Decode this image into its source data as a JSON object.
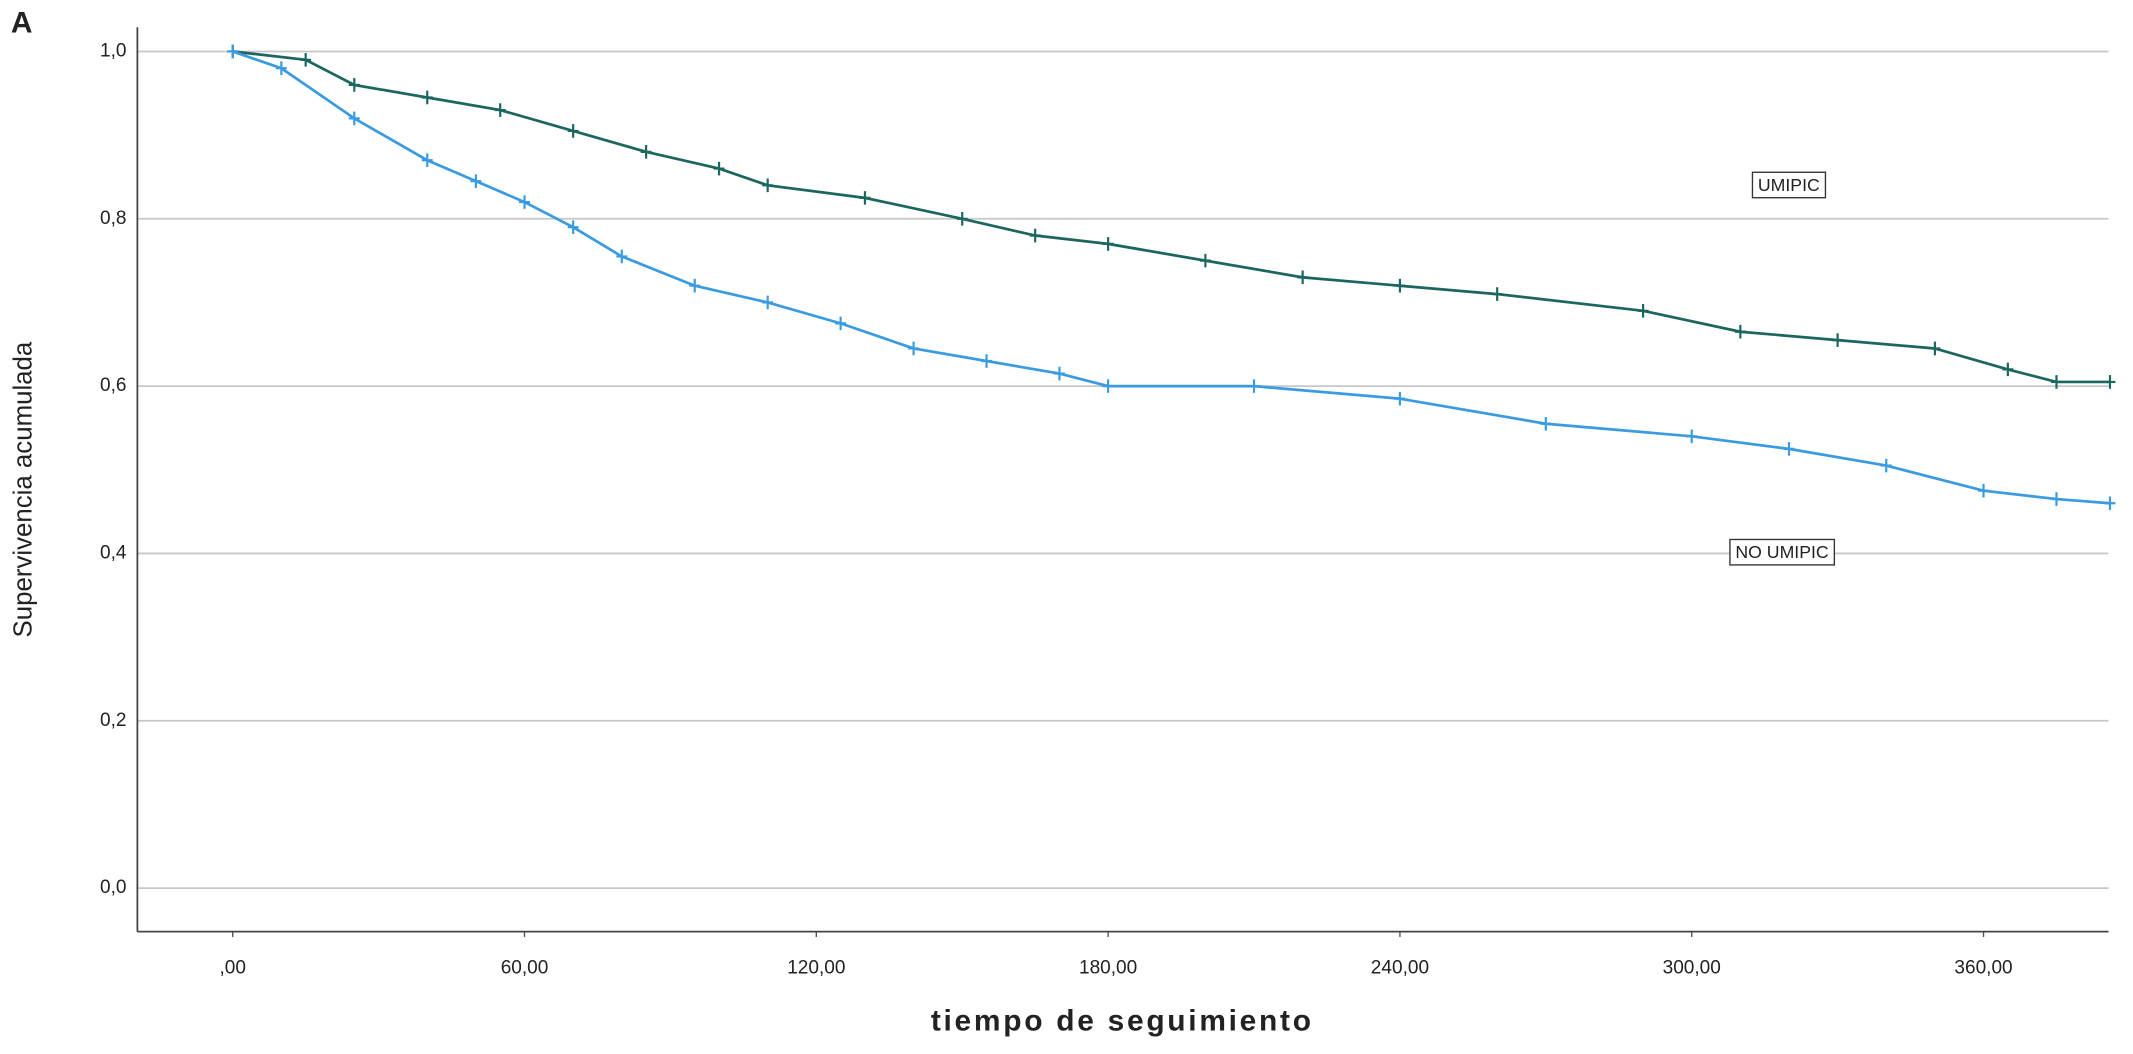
{
  "chart_data": {
    "type": "line",
    "panel_label": "A",
    "x_label": "tiempo de seguimiento",
    "y_label": "Supervivencia acumulada",
    "xlim": [
      -19.6,
      385.7
    ],
    "ylim": [
      -0.052,
      1.029
    ],
    "xticks": [
      {
        "value": 0,
        "label": ",00"
      },
      {
        "value": 60,
        "label": "60,00"
      },
      {
        "value": 120,
        "label": "120,00"
      },
      {
        "value": 180,
        "label": "180,00"
      },
      {
        "value": 240,
        "label": "240,00"
      },
      {
        "value": 300,
        "label": "300,00"
      },
      {
        "value": 360,
        "label": "360,00"
      }
    ],
    "yticks": [
      {
        "value": 0,
        "label": "0,0"
      },
      {
        "value": 0.2,
        "label": "0,2"
      },
      {
        "value": 0.4,
        "label": "0,4"
      },
      {
        "value": 0.6,
        "label": "0,6"
      },
      {
        "value": 0.8,
        "label": "0,8"
      },
      {
        "value": 1,
        "label": "1,0"
      }
    ],
    "grid": true,
    "series": [
      {
        "name": "UMIPIC",
        "color": "#1c6660",
        "x": [
          0,
          15,
          25,
          40,
          55,
          70,
          85,
          100,
          110,
          130,
          150,
          165,
          180,
          200,
          220,
          240,
          260,
          290,
          310,
          330,
          350,
          365,
          375,
          386
        ],
        "values": [
          1.0,
          0.99,
          0.96,
          0.945,
          0.93,
          0.905,
          0.88,
          0.86,
          0.84,
          0.825,
          0.8,
          0.78,
          0.77,
          0.75,
          0.73,
          0.72,
          0.71,
          0.69,
          0.665,
          0.655,
          0.645,
          0.62,
          0.605,
          0.605
        ]
      },
      {
        "name": "NO UMIPIC",
        "color": "#3a9be0",
        "x": [
          0,
          10,
          25,
          40,
          50,
          60,
          70,
          80,
          95,
          110,
          125,
          140,
          155,
          170,
          180,
          210,
          240,
          270,
          300,
          320,
          340,
          360,
          375,
          386
        ],
        "values": [
          1.0,
          0.98,
          0.92,
          0.87,
          0.845,
          0.82,
          0.79,
          0.755,
          0.72,
          0.7,
          0.675,
          0.645,
          0.63,
          0.615,
          0.6,
          0.6,
          0.585,
          0.555,
          0.54,
          0.525,
          0.505,
          0.475,
          0.465,
          0.46
        ]
      }
    ]
  }
}
